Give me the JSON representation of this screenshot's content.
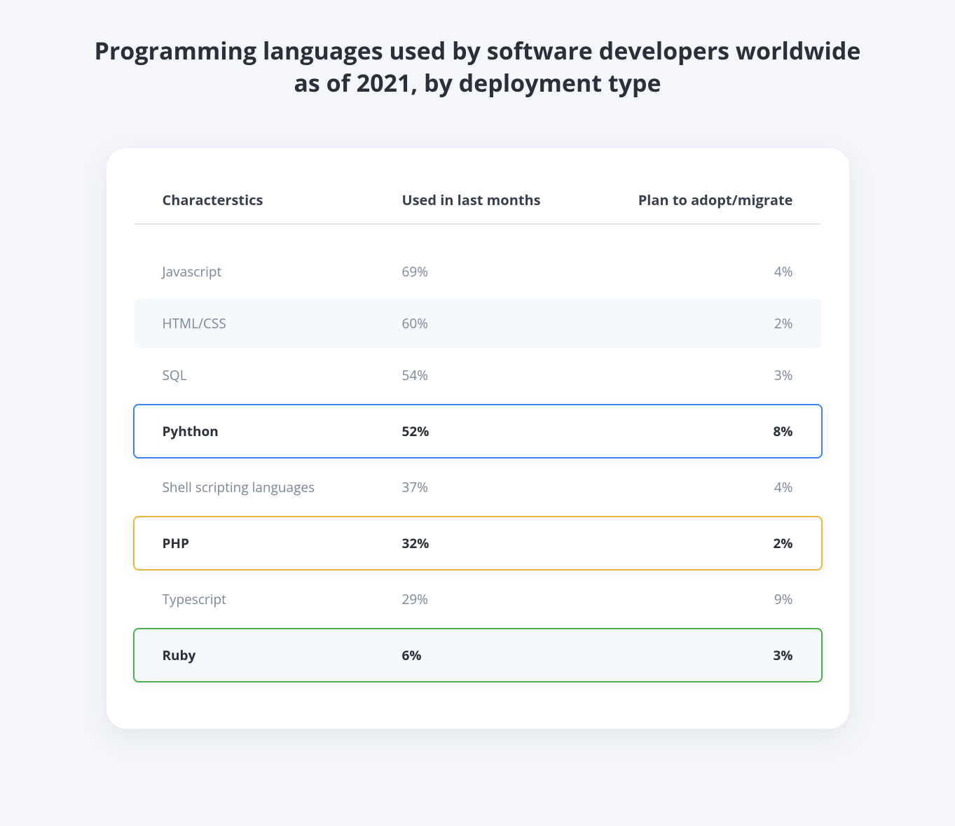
{
  "title": "Programming languages used by software developers worldwide as of 2021, by deployment type",
  "table": {
    "type": "table",
    "columns": [
      "Characterstics",
      "Used in last months",
      "Plan to adopt/migrate"
    ],
    "rows": [
      {
        "name": "Javascript",
        "used": "69%",
        "plan": "4%",
        "alt": false,
        "highlight": false
      },
      {
        "name": "HTML/CSS",
        "used": "60%",
        "plan": "2%",
        "alt": true,
        "highlight": false
      },
      {
        "name": "SQL",
        "used": "54%",
        "plan": "3%",
        "alt": false,
        "highlight": false
      },
      {
        "name": "Pyhthon",
        "used": "52%",
        "plan": "8%",
        "alt": false,
        "highlight": true,
        "highlight_color": "#3b82f6"
      },
      {
        "name": "Shell scripting languages",
        "used": "37%",
        "plan": "4%",
        "alt": false,
        "highlight": false
      },
      {
        "name": "PHP",
        "used": "32%",
        "plan": "2%",
        "alt": false,
        "highlight": true,
        "highlight_color": "#e8b63a"
      },
      {
        "name": "Typescript",
        "used": "29%",
        "plan": "9%",
        "alt": false,
        "highlight": false
      },
      {
        "name": "Ruby",
        "used": "6%",
        "plan": "3%",
        "alt": true,
        "highlight": true,
        "highlight_color": "#4caf50"
      }
    ],
    "header_text_color": "#3a3f4d",
    "body_text_color": "#7d859a",
    "highlight_text_color": "#2b2f3a",
    "alt_row_color": "#f6f9fc",
    "card_background": "#ffffff",
    "page_background": "#f4f6fa",
    "header_fontsize": 20,
    "row_fontsize": 19,
    "title_fontsize": 34
  }
}
